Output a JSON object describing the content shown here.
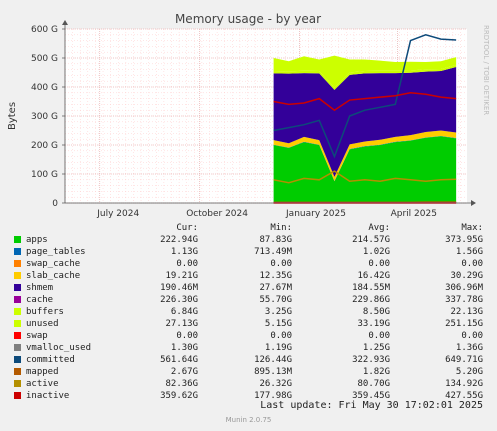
{
  "chart_data": {
    "type": "area",
    "title": "Memory usage - by year",
    "ylabel": "Bytes",
    "side_label": "RRDTOOL / TOBI OETIKER",
    "ylim": [
      0,
      600
    ],
    "yticks": [
      "0",
      "100 G",
      "200 G",
      "300 G",
      "400 G",
      "500 G",
      "600 G"
    ],
    "xticks": [
      "July 2024",
      "October 2024",
      "January 2025",
      "April 2025"
    ],
    "x": [
      "2024-12-08",
      "2024-12-22",
      "2025-01-05",
      "2025-01-19",
      "2025-02-02",
      "2025-02-16",
      "2025-03-02",
      "2025-03-16",
      "2025-03-30",
      "2025-04-13",
      "2025-04-27",
      "2025-05-11",
      "2025-05-25"
    ],
    "series": [
      {
        "name": "apps",
        "color": "#00cc00",
        "values": [
          200,
          190,
          210,
          200,
          75,
          185,
          195,
          200,
          210,
          215,
          225,
          230,
          223
        ]
      },
      {
        "name": "page_tables",
        "color": "#0066b3",
        "values": [
          1,
          1,
          1,
          1,
          1,
          1,
          1,
          1,
          1,
          1,
          1,
          1,
          1
        ]
      },
      {
        "name": "swap_cache",
        "color": "#ff8000",
        "values": [
          0,
          0,
          0,
          0,
          0,
          0,
          0,
          0,
          0,
          0,
          0,
          0,
          0
        ]
      },
      {
        "name": "slab_cache",
        "color": "#ffcc00",
        "values": [
          16,
          15,
          17,
          16,
          14,
          16,
          16,
          17,
          17,
          18,
          19,
          19,
          19
        ]
      },
      {
        "name": "shmem",
        "color": "#330099",
        "values": [
          0,
          0,
          0,
          0,
          0,
          0,
          0,
          0,
          0,
          0,
          0,
          0,
          0
        ]
      },
      {
        "name": "cache",
        "color": "#990099",
        "values": [
          230,
          240,
          220,
          230,
          300,
          240,
          235,
          230,
          220,
          215,
          208,
          205,
          226
        ]
      },
      {
        "name": "buffers",
        "color": "#ccff00",
        "values": [
          8,
          8,
          8,
          8,
          8,
          8,
          8,
          8,
          8,
          8,
          8,
          7,
          7
        ]
      },
      {
        "name": "unused",
        "color": "#ccff00",
        "values": [
          45,
          35,
          50,
          40,
          110,
          45,
          40,
          35,
          30,
          30,
          25,
          27,
          27
        ]
      },
      {
        "name": "swap",
        "color": "#ff0000",
        "values": [
          0,
          0,
          0,
          0,
          0,
          0,
          0,
          0,
          0,
          0,
          0,
          0,
          0
        ]
      },
      {
        "name": "vmalloc_used",
        "color": "#808080",
        "values": [
          1,
          1,
          1,
          1,
          1,
          1,
          1,
          1,
          1,
          1,
          1,
          1,
          1
        ]
      },
      {
        "name": "committed",
        "color": "#0d4a7a",
        "values": [
          250,
          260,
          270,
          285,
          160,
          300,
          320,
          330,
          340,
          560,
          580,
          565,
          562
        ]
      },
      {
        "name": "mapped",
        "color": "#b35a00",
        "values": [
          2,
          2,
          2,
          2,
          2,
          2,
          2,
          2,
          2,
          2,
          3,
          3,
          3
        ]
      },
      {
        "name": "active",
        "color": "#b38f00",
        "values": [
          80,
          70,
          85,
          80,
          110,
          75,
          80,
          75,
          85,
          80,
          75,
          80,
          82
        ]
      },
      {
        "name": "inactive",
        "color": "#cc0000",
        "values": [
          350,
          340,
          345,
          360,
          320,
          355,
          360,
          365,
          370,
          380,
          375,
          365,
          360
        ]
      }
    ],
    "legend_headers": [
      "Cur:",
      "Min:",
      "Avg:",
      "Max:"
    ],
    "legend": [
      {
        "name": "apps",
        "color": "#00cc00",
        "cur": "222.94G",
        "min": "87.83G",
        "avg": "214.57G",
        "max": "373.95G"
      },
      {
        "name": "page_tables",
        "color": "#0066b3",
        "cur": "1.13G",
        "min": "713.49M",
        "avg": "1.02G",
        "max": "1.56G"
      },
      {
        "name": "swap_cache",
        "color": "#ff8000",
        "cur": "0.00",
        "min": "0.00",
        "avg": "0.00",
        "max": "0.00"
      },
      {
        "name": "slab_cache",
        "color": "#ffcc00",
        "cur": "19.21G",
        "min": "12.35G",
        "avg": "16.42G",
        "max": "30.29G"
      },
      {
        "name": "shmem",
        "color": "#330099",
        "cur": "190.46M",
        "min": "27.67M",
        "avg": "184.55M",
        "max": "306.96M"
      },
      {
        "name": "cache",
        "color": "#990099",
        "cur": "226.30G",
        "min": "55.70G",
        "avg": "229.86G",
        "max": "337.78G"
      },
      {
        "name": "buffers",
        "color": "#ccff00",
        "cur": "6.84G",
        "min": "3.25G",
        "avg": "8.50G",
        "max": "22.13G"
      },
      {
        "name": "unused",
        "color": "#ccff00",
        "cur": "27.13G",
        "min": "5.15G",
        "avg": "33.19G",
        "max": "251.15G"
      },
      {
        "name": "swap",
        "color": "#ff0000",
        "cur": "0.00",
        "min": "0.00",
        "avg": "0.00",
        "max": "0.00"
      },
      {
        "name": "vmalloc_used",
        "color": "#808080",
        "cur": "1.30G",
        "min": "1.19G",
        "avg": "1.25G",
        "max": "1.36G"
      },
      {
        "name": "committed",
        "color": "#0d4a7a",
        "cur": "561.64G",
        "min": "126.44G",
        "avg": "322.93G",
        "max": "649.71G"
      },
      {
        "name": "mapped",
        "color": "#b35a00",
        "cur": "2.67G",
        "min": "895.13M",
        "avg": "1.82G",
        "max": "5.20G"
      },
      {
        "name": "active",
        "color": "#b38f00",
        "cur": "82.36G",
        "min": "26.32G",
        "avg": "80.70G",
        "max": "134.92G"
      },
      {
        "name": "inactive",
        "color": "#cc0000",
        "cur": "359.62G",
        "min": "177.98G",
        "avg": "359.45G",
        "max": "427.55G"
      }
    ]
  },
  "footer": {
    "last_update": "Last update: Fri May 30 17:02:01 2025",
    "munin": "Munin 2.0.75"
  }
}
